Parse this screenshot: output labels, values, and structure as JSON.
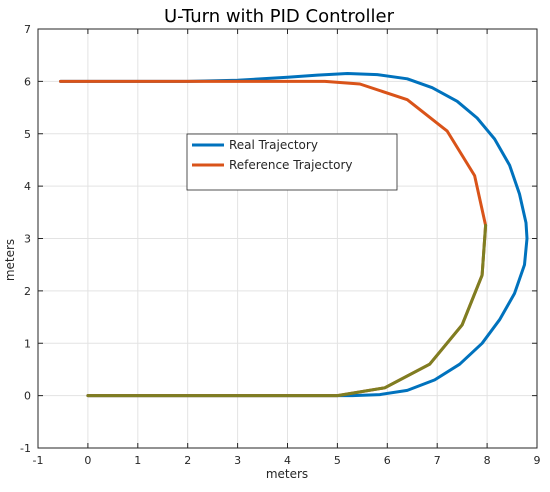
{
  "chart_data": {
    "type": "line",
    "title": "U-Turn with PID Controller",
    "xlabel": "meters",
    "ylabel": "meters",
    "xlim": [
      -1,
      9
    ],
    "ylim": [
      -1,
      7
    ],
    "xticks": [
      "-1",
      "0",
      "1",
      "2",
      "3",
      "4",
      "5",
      "6",
      "7",
      "8",
      "9"
    ],
    "yticks": [
      "-1",
      "0",
      "1",
      "2",
      "3",
      "4",
      "5",
      "6",
      "7"
    ],
    "grid": true,
    "legend_position": "center",
    "series": [
      {
        "name": "Real Trajectory",
        "color": "#0072BD",
        "points": [
          [
            -0.55,
            6.0
          ],
          [
            1.0,
            6.0
          ],
          [
            2.0,
            6.0
          ],
          [
            3.0,
            6.02
          ],
          [
            4.0,
            6.08
          ],
          [
            4.6,
            6.12
          ],
          [
            5.2,
            6.15
          ],
          [
            5.8,
            6.13
          ],
          [
            6.4,
            6.05
          ],
          [
            6.9,
            5.88
          ],
          [
            7.4,
            5.62
          ],
          [
            7.8,
            5.3
          ],
          [
            8.15,
            4.9
          ],
          [
            8.45,
            4.4
          ],
          [
            8.65,
            3.85
          ],
          [
            8.78,
            3.3
          ],
          [
            8.8,
            3.0
          ],
          [
            8.75,
            2.5
          ],
          [
            8.55,
            1.95
          ],
          [
            8.25,
            1.45
          ],
          [
            7.9,
            1.0
          ],
          [
            7.45,
            0.6
          ],
          [
            6.95,
            0.3
          ],
          [
            6.4,
            0.1
          ],
          [
            5.85,
            0.02
          ],
          [
            5.3,
            0.0
          ],
          [
            4.0,
            0.0
          ],
          [
            2.0,
            0.0
          ],
          [
            0.0,
            0.0
          ]
        ]
      },
      {
        "name": "Reference Trajectory",
        "color": "#D95319",
        "points": [
          [
            -0.55,
            6.0
          ],
          [
            4.75,
            6.0
          ],
          [
            5.45,
            5.95
          ],
          [
            6.4,
            5.65
          ],
          [
            7.2,
            5.05
          ],
          [
            7.75,
            4.2
          ],
          [
            7.97,
            3.25
          ],
          [
            7.9,
            2.3
          ],
          [
            7.5,
            1.35
          ],
          [
            6.85,
            0.6
          ],
          [
            5.95,
            0.15
          ],
          [
            5.0,
            0.0
          ],
          [
            3.8,
            0.0
          ],
          [
            0.0,
            0.0
          ]
        ]
      },
      {
        "name": "",
        "color": "#7E7E22",
        "points": [
          [
            0.0,
            0.0
          ],
          [
            3.8,
            0.0
          ],
          [
            5.0,
            0.0
          ],
          [
            5.95,
            0.15
          ],
          [
            6.85,
            0.6
          ],
          [
            7.5,
            1.35
          ],
          [
            7.9,
            2.3
          ],
          [
            7.97,
            3.25
          ]
        ]
      }
    ]
  }
}
